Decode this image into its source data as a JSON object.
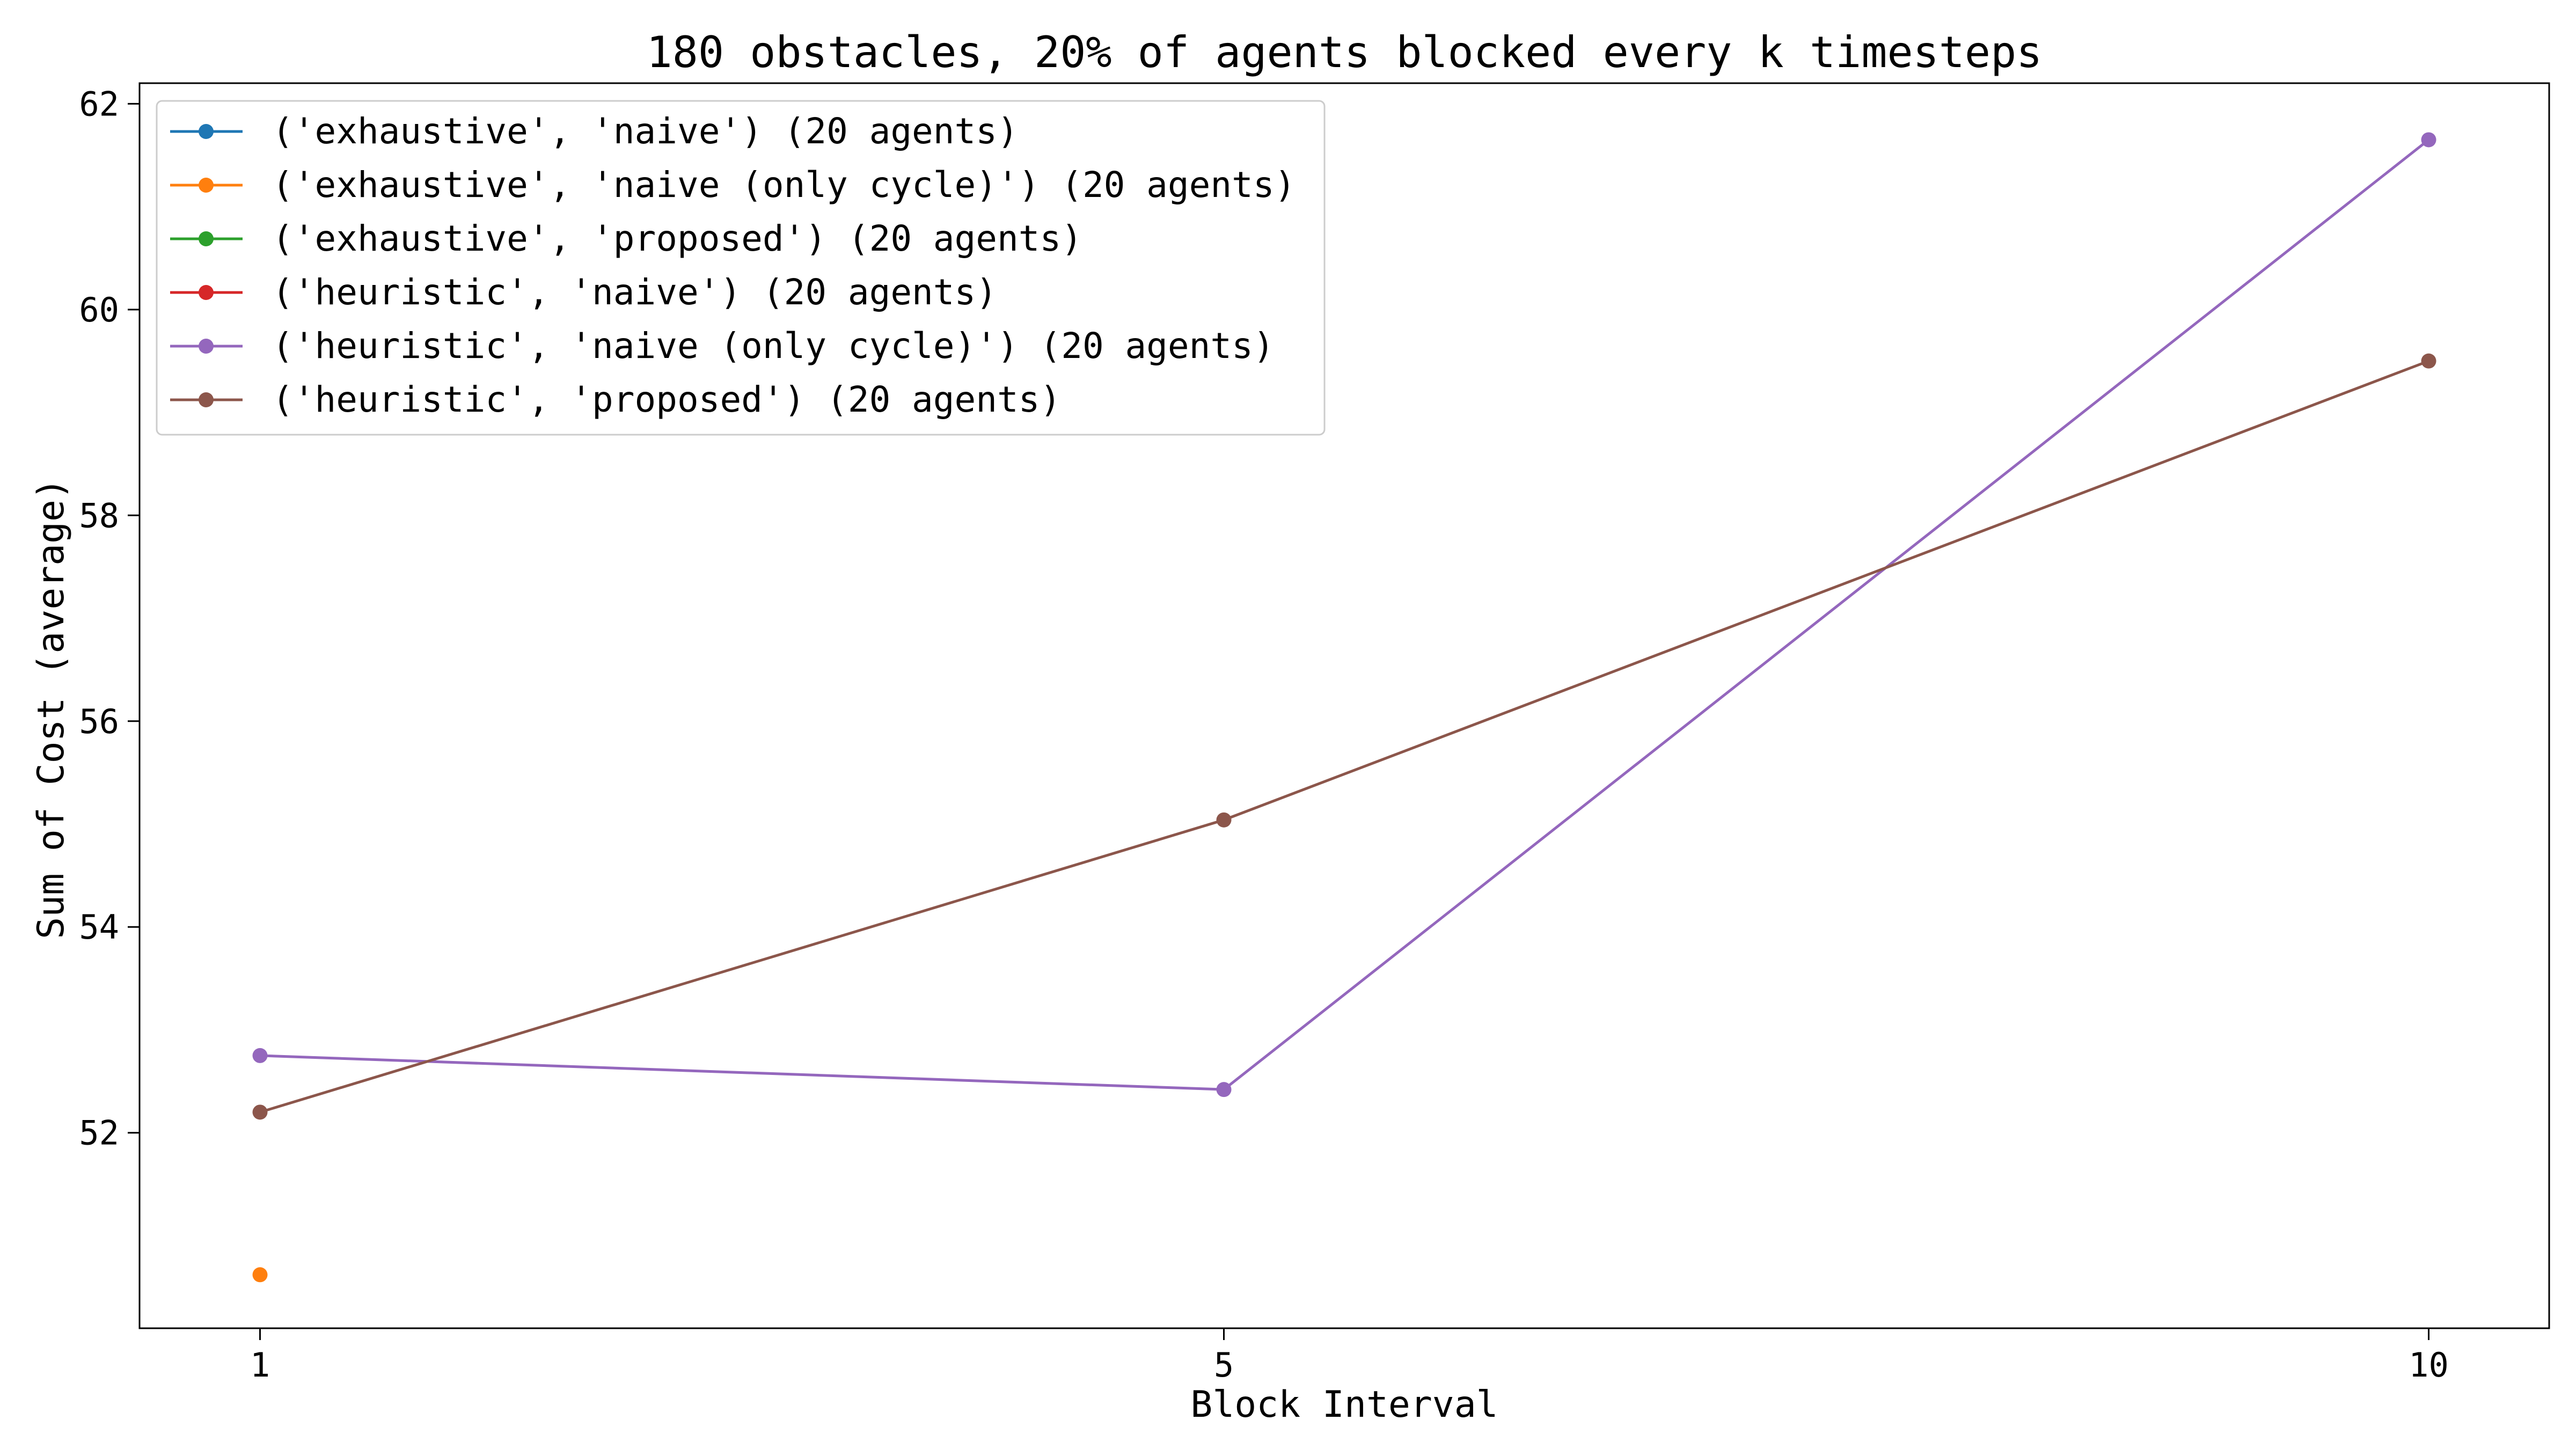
{
  "chart_data": {
    "type": "line",
    "title": "180 obstacles, 20% of agents blocked every k timesteps",
    "xlabel": "Block Interval",
    "ylabel": "Sum of Cost (average)",
    "x": [
      1,
      5,
      10
    ],
    "x_ticks": [
      "1",
      "5",
      "10"
    ],
    "y_ticks": [
      52,
      54,
      56,
      58,
      60,
      62
    ],
    "xlim": [
      0.5,
      10.5
    ],
    "ylim": [
      50.1,
      62.2
    ],
    "grid": false,
    "legend_position": "top-left",
    "series": [
      {
        "name": "('exhaustive', 'naive') (20 agents)",
        "color": "#1f77b4",
        "values": [
          null,
          null,
          null
        ]
      },
      {
        "name": "('exhaustive', 'naive (only cycle)') (20 agents)",
        "color": "#ff7f0e",
        "values": [
          50.62,
          null,
          null
        ]
      },
      {
        "name": "('exhaustive', 'proposed') (20 agents)",
        "color": "#2ca02c",
        "values": [
          null,
          null,
          null
        ]
      },
      {
        "name": "('heuristic', 'naive') (20 agents)",
        "color": "#d62728",
        "values": [
          null,
          null,
          null
        ]
      },
      {
        "name": "('heuristic', 'naive (only cycle)') (20 agents)",
        "color": "#9467bd",
        "values": [
          52.75,
          52.42,
          61.65
        ]
      },
      {
        "name": "('heuristic', 'proposed') (20 agents)",
        "color": "#8c564b",
        "values": [
          52.2,
          55.04,
          59.5
        ]
      }
    ]
  }
}
